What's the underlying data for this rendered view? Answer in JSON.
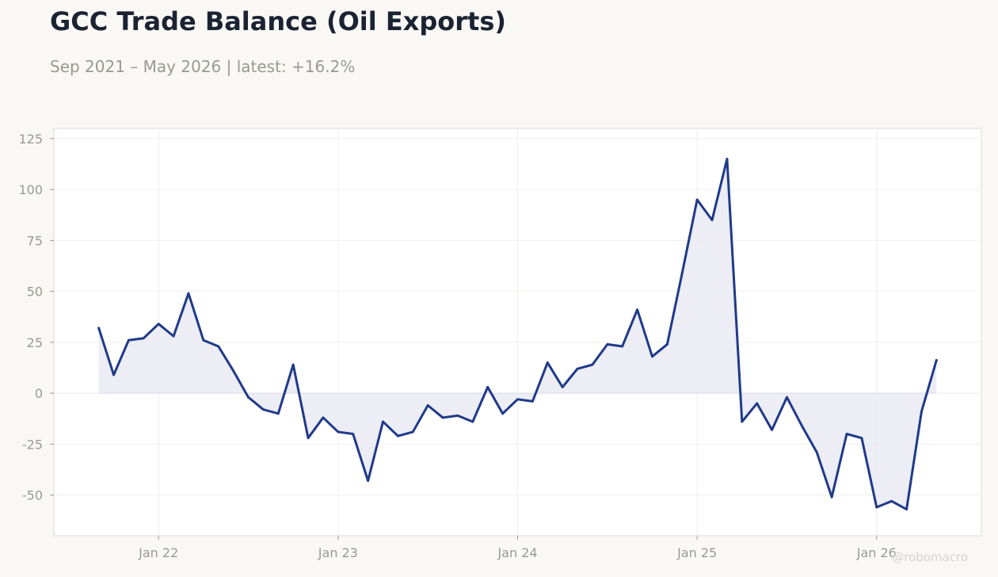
{
  "title": "GCC Trade Balance (Oil Exports)",
  "subtitle": "Sep 2021 – May 2026 | latest: +16.2%",
  "watermark": "@robomacro",
  "colors": {
    "line": "#1f3a88",
    "fill": "#e9eaf3",
    "axis_text": "#9a9994",
    "grid": "#eeeeec",
    "plot_border": "#dcdad4",
    "plot_bg": "#ffffff"
  },
  "chart_data": {
    "type": "area",
    "title": "GCC Trade Balance (Oil Exports)",
    "subtitle": "Sep 2021 – May 2026 | latest: +16.2%",
    "xlabel": "",
    "ylabel": "",
    "x_range": [
      "2021-09",
      "2026-05"
    ],
    "ylim": [
      -70,
      130
    ],
    "yticks": [
      -50,
      -25,
      0,
      25,
      50,
      75,
      100,
      125
    ],
    "ytick_labels": [
      "-50",
      "-25",
      "0",
      "25",
      "50",
      "75",
      "100",
      "125"
    ],
    "xticks": [
      "2022-01",
      "2023-01",
      "2024-01",
      "2025-01",
      "2026-01"
    ],
    "xtick_labels": [
      "Jan 22",
      "Jan 23",
      "Jan 24",
      "Jan 25",
      "Jan 26"
    ],
    "grid": true,
    "legend": "none",
    "series": [
      {
        "x": [
          "2021-09",
          "2021-10",
          "2021-11",
          "2021-12",
          "2022-01",
          "2022-02",
          "2022-03",
          "2022-04",
          "2022-05",
          "2022-06",
          "2022-07",
          "2022-08",
          "2022-09",
          "2022-10",
          "2022-11",
          "2022-12",
          "2023-01",
          "2023-02",
          "2023-03",
          "2023-04",
          "2023-05",
          "2023-06",
          "2023-07",
          "2023-08",
          "2023-09",
          "2023-10",
          "2023-11",
          "2023-12",
          "2024-01",
          "2024-02",
          "2024-03",
          "2024-04",
          "2024-05",
          "2024-06",
          "2024-07",
          "2024-08",
          "2024-09",
          "2024-10",
          "2024-11",
          "2024-12",
          "2025-01",
          "2025-02",
          "2025-03",
          "2025-04",
          "2025-05",
          "2025-06",
          "2025-07",
          "2025-08",
          "2025-09",
          "2025-10",
          "2025-11",
          "2025-12",
          "2026-01",
          "2026-02",
          "2026-03",
          "2026-04",
          "2026-05"
        ],
        "values": [
          32,
          9,
          26,
          27,
          34,
          28,
          49,
          26,
          23,
          11,
          -2,
          -8,
          -10,
          14,
          -22,
          -12,
          -19,
          -20,
          -43,
          -14,
          -21,
          -19,
          -6,
          -12,
          -11,
          -14,
          3,
          -10,
          -3,
          -4,
          15,
          3,
          12,
          14,
          24,
          23,
          41,
          18,
          24,
          59,
          95,
          85,
          115,
          -14,
          -5,
          -18,
          -2,
          -16,
          -29,
          -51,
          -20,
          -22,
          -56,
          -53,
          -57,
          -9,
          16.2
        ]
      }
    ]
  }
}
